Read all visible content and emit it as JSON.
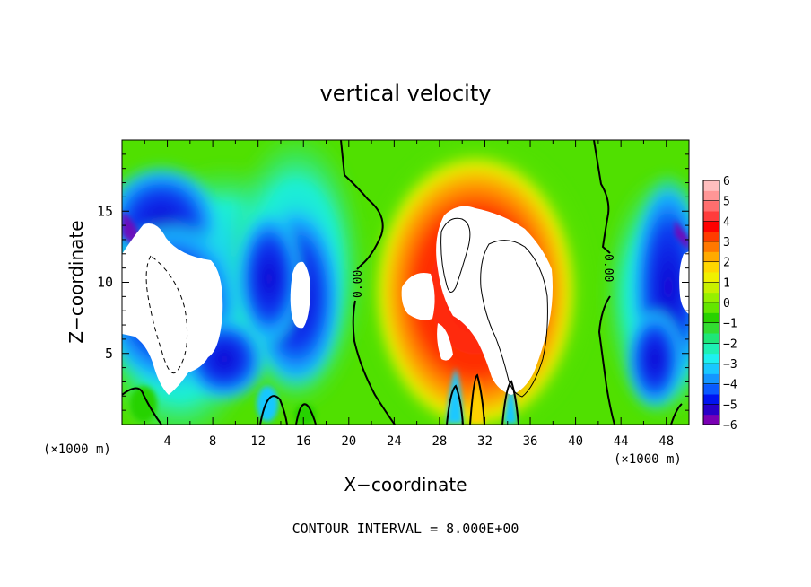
{
  "chart_data": {
    "type": "heatmap",
    "title": "vertical velocity",
    "xlabel": "X−coordinate",
    "ylabel": "Z−coordinate",
    "x_unit_left": "(×1000 m)",
    "x_unit_right": "(×1000 m)",
    "xlim": [
      0,
      50
    ],
    "ylim": [
      0,
      20
    ],
    "x_ticks": [
      "4",
      "8",
      "12",
      "16",
      "20",
      "24",
      "28",
      "32",
      "36",
      "40",
      "44",
      "48"
    ],
    "y_ticks": [
      "5",
      "10",
      "15"
    ],
    "contour_interval_text": "CONTOUR INTERVAL = 8.000E+00",
    "contour_labels": [
      "0.00",
      "0.00"
    ],
    "colorbar": {
      "min": -6,
      "max": 6,
      "tick_labels": [
        "6",
        "5",
        "4",
        "3",
        "2",
        "1",
        "0",
        "−1",
        "−2",
        "−3",
        "−4",
        "−5",
        "−6"
      ],
      "colors": [
        "#7a00b4",
        "#2800c8",
        "#0014f0",
        "#0a5aff",
        "#1496ff",
        "#19c8ff",
        "#1ef0f0",
        "#1ef0b4",
        "#1ee678",
        "#32dc32",
        "#28d200",
        "#64e600",
        "#96f000",
        "#c8f000",
        "#f0f000",
        "#ffd700",
        "#ffaa00",
        "#ff7800",
        "#ff3c00",
        "#ff0000",
        "#ff3c3c",
        "#ff6e6e",
        "#ff9696",
        "#ffbebe"
      ]
    },
    "features": [
      {
        "name": "updraft core",
        "x": 32.5,
        "z": 9.5,
        "w": 8
      },
      {
        "name": "downdraft left",
        "x": 4,
        "z": 9,
        "w": -8
      },
      {
        "name": "downdraft mid",
        "x": 15.5,
        "z": 10,
        "w": -8
      },
      {
        "name": "downdraft right",
        "x": 49.5,
        "z": 10.5,
        "w": -8
      }
    ]
  }
}
